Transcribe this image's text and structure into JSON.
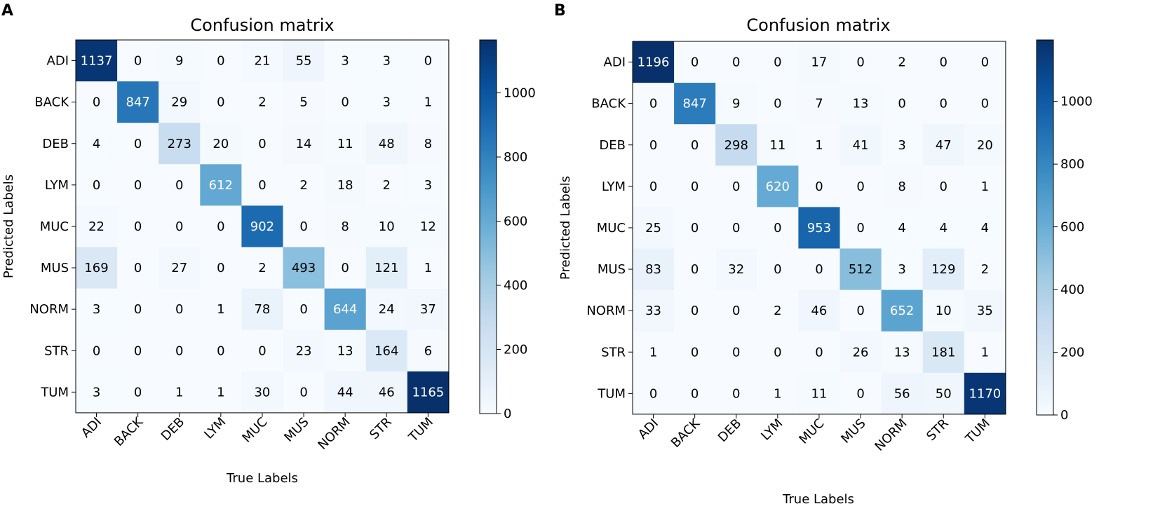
{
  "figure": {
    "panels": [
      "A",
      "B"
    ]
  },
  "colormap": {
    "name": "Blues",
    "stops": [
      "#f7fbff",
      "#deebf7",
      "#c6dbef",
      "#9ecae1",
      "#6baed6",
      "#4292c6",
      "#2171b5",
      "#08519c",
      "#08306b"
    ],
    "text_light": "#ffffff",
    "text_dark": "#000000"
  },
  "chart_data": [
    {
      "type": "heatmap",
      "panel": "A",
      "title": "Confusion matrix",
      "xlabel": "True Labels",
      "ylabel": "Predicted Labels",
      "x_categories": [
        "ADI",
        "BACK",
        "DEB",
        "LYM",
        "MUC",
        "MUS",
        "NORM",
        "STR",
        "TUM"
      ],
      "y_categories": [
        "ADI",
        "BACK",
        "DEB",
        "LYM",
        "MUC",
        "MUS",
        "NORM",
        "STR",
        "TUM"
      ],
      "values": [
        [
          1137,
          0,
          9,
          0,
          21,
          55,
          3,
          3,
          0
        ],
        [
          0,
          847,
          29,
          0,
          2,
          5,
          0,
          3,
          1
        ],
        [
          4,
          0,
          273,
          20,
          0,
          14,
          11,
          48,
          8
        ],
        [
          0,
          0,
          0,
          612,
          0,
          2,
          18,
          2,
          3
        ],
        [
          22,
          0,
          0,
          0,
          902,
          0,
          8,
          10,
          12
        ],
        [
          169,
          0,
          27,
          0,
          2,
          493,
          0,
          121,
          1
        ],
        [
          3,
          0,
          0,
          1,
          78,
          0,
          644,
          24,
          37
        ],
        [
          0,
          0,
          0,
          0,
          0,
          23,
          13,
          164,
          6
        ],
        [
          3,
          0,
          1,
          1,
          30,
          0,
          44,
          46,
          1165
        ]
      ],
      "vmin": 0,
      "vmax": 1165,
      "colorbar_ticks": [
        0,
        200,
        400,
        600,
        800,
        1000
      ]
    },
    {
      "type": "heatmap",
      "panel": "B",
      "title": "Confusion matrix",
      "xlabel": "True Labels",
      "ylabel": "Predicted Labels",
      "x_categories": [
        "ADI",
        "BACK",
        "DEB",
        "LYM",
        "MUC",
        "MUS",
        "NORM",
        "STR",
        "TUM"
      ],
      "y_categories": [
        "ADI",
        "BACK",
        "DEB",
        "LYM",
        "MUC",
        "MUS",
        "NORM",
        "STR",
        "TUM"
      ],
      "values": [
        [
          1196,
          0,
          0,
          0,
          17,
          0,
          2,
          0,
          0
        ],
        [
          0,
          847,
          9,
          0,
          7,
          13,
          0,
          0,
          0
        ],
        [
          0,
          0,
          298,
          11,
          1,
          41,
          3,
          47,
          20
        ],
        [
          0,
          0,
          0,
          620,
          0,
          0,
          8,
          0,
          1
        ],
        [
          25,
          0,
          0,
          0,
          953,
          0,
          4,
          4,
          4
        ],
        [
          83,
          0,
          32,
          0,
          0,
          512,
          3,
          129,
          2
        ],
        [
          33,
          0,
          0,
          2,
          46,
          0,
          652,
          10,
          35
        ],
        [
          1,
          0,
          0,
          0,
          0,
          26,
          13,
          181,
          1
        ],
        [
          0,
          0,
          0,
          1,
          11,
          0,
          56,
          50,
          1170
        ]
      ],
      "vmin": 0,
      "vmax": 1196,
      "colorbar_ticks": [
        0,
        200,
        400,
        600,
        800,
        1000
      ]
    }
  ]
}
